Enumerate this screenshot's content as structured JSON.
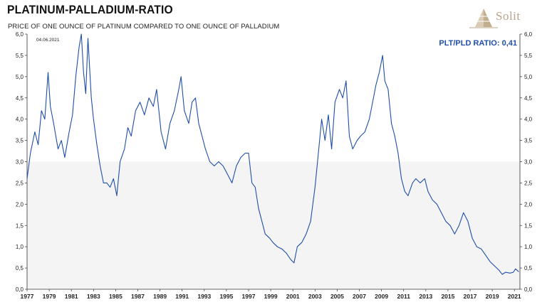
{
  "header": {
    "title": "PLATINUM-PALLADIUM-RATIO",
    "subtitle": "PRICE OF ONE OUNCE OF PLATINUM COMPARED TO ONE OUNCE OF PALLADIUM",
    "logo_text": "Solit"
  },
  "chart_data": {
    "type": "line",
    "date_label": "04.06.2021",
    "annotation": "PLT/PLD RATIO: 0,41",
    "ylim": [
      0,
      6
    ],
    "xlim": [
      1977,
      2021.5
    ],
    "y_ticks": [
      "0,0",
      "0,5",
      "1,0",
      "1,5",
      "2,0",
      "2,5",
      "3,0",
      "3,5",
      "4,0",
      "4,5",
      "5,0",
      "5,5",
      "6,0"
    ],
    "x_ticks": [
      "1977",
      "1979",
      "1981",
      "1983",
      "1985",
      "1987",
      "1989",
      "1991",
      "1993",
      "1995",
      "1997",
      "1999",
      "2001",
      "2003",
      "2005",
      "2007",
      "2009",
      "2011",
      "2013",
      "2015",
      "2017",
      "2019",
      "2021"
    ],
    "reference_band": [
      0,
      3.0
    ],
    "series": [
      {
        "color": "#1f4fa8",
        "points": [
          [
            1977.0,
            2.6
          ],
          [
            1977.3,
            3.2
          ],
          [
            1977.7,
            3.7
          ],
          [
            1978.0,
            3.4
          ],
          [
            1978.3,
            4.2
          ],
          [
            1978.6,
            4.0
          ],
          [
            1978.9,
            5.1
          ],
          [
            1979.1,
            4.3
          ],
          [
            1979.4,
            3.9
          ],
          [
            1979.8,
            3.3
          ],
          [
            1980.1,
            3.5
          ],
          [
            1980.4,
            3.1
          ],
          [
            1980.8,
            3.7
          ],
          [
            1981.1,
            4.1
          ],
          [
            1981.4,
            5.0
          ],
          [
            1981.7,
            5.7
          ],
          [
            1981.9,
            6.0
          ],
          [
            1982.1,
            5.1
          ],
          [
            1982.3,
            4.6
          ],
          [
            1982.5,
            5.9
          ],
          [
            1982.8,
            4.5
          ],
          [
            1983.0,
            4.0
          ],
          [
            1983.3,
            3.4
          ],
          [
            1983.6,
            2.9
          ],
          [
            1983.9,
            2.5
          ],
          [
            1984.2,
            2.5
          ],
          [
            1984.5,
            2.4
          ],
          [
            1984.8,
            2.6
          ],
          [
            1985.1,
            2.2
          ],
          [
            1985.4,
            3.0
          ],
          [
            1985.8,
            3.3
          ],
          [
            1986.1,
            3.8
          ],
          [
            1986.4,
            3.6
          ],
          [
            1986.8,
            4.2
          ],
          [
            1987.2,
            4.4
          ],
          [
            1987.6,
            4.1
          ],
          [
            1988.0,
            4.5
          ],
          [
            1988.4,
            4.3
          ],
          [
            1988.7,
            4.7
          ],
          [
            1989.1,
            3.7
          ],
          [
            1989.5,
            3.3
          ],
          [
            1989.9,
            3.9
          ],
          [
            1990.3,
            4.2
          ],
          [
            1990.7,
            4.7
          ],
          [
            1990.9,
            5.0
          ],
          [
            1991.2,
            4.2
          ],
          [
            1991.6,
            3.9
          ],
          [
            1991.9,
            4.4
          ],
          [
            1992.2,
            4.5
          ],
          [
            1992.5,
            3.9
          ],
          [
            1992.8,
            3.6
          ],
          [
            1993.1,
            3.3
          ],
          [
            1993.5,
            3.0
          ],
          [
            1993.9,
            2.9
          ],
          [
            1994.3,
            3.0
          ],
          [
            1994.7,
            2.9
          ],
          [
            1995.1,
            2.7
          ],
          [
            1995.5,
            2.5
          ],
          [
            1995.9,
            2.9
          ],
          [
            1996.3,
            3.1
          ],
          [
            1996.7,
            3.2
          ],
          [
            1997.0,
            3.2
          ],
          [
            1997.3,
            2.5
          ],
          [
            1997.6,
            2.4
          ],
          [
            1997.9,
            1.9
          ],
          [
            1998.2,
            1.6
          ],
          [
            1998.5,
            1.3
          ],
          [
            1998.9,
            1.2
          ],
          [
            1999.2,
            1.1
          ],
          [
            1999.6,
            1.0
          ],
          [
            2000.0,
            0.95
          ],
          [
            2000.4,
            0.85
          ],
          [
            2000.8,
            0.7
          ],
          [
            2001.1,
            0.62
          ],
          [
            2001.4,
            1.0
          ],
          [
            2001.8,
            1.1
          ],
          [
            2002.2,
            1.3
          ],
          [
            2002.6,
            1.6
          ],
          [
            2003.0,
            2.4
          ],
          [
            2003.3,
            3.2
          ],
          [
            2003.6,
            4.0
          ],
          [
            2003.9,
            3.5
          ],
          [
            2004.2,
            4.1
          ],
          [
            2004.5,
            3.3
          ],
          [
            2004.8,
            4.4
          ],
          [
            2005.2,
            4.7
          ],
          [
            2005.5,
            4.5
          ],
          [
            2005.8,
            4.9
          ],
          [
            2006.1,
            3.6
          ],
          [
            2006.4,
            3.3
          ],
          [
            2006.8,
            3.5
          ],
          [
            2007.1,
            3.6
          ],
          [
            2007.5,
            3.7
          ],
          [
            2007.9,
            4.0
          ],
          [
            2008.2,
            4.4
          ],
          [
            2008.5,
            4.8
          ],
          [
            2008.8,
            5.1
          ],
          [
            2009.1,
            5.5
          ],
          [
            2009.3,
            4.9
          ],
          [
            2009.6,
            4.7
          ],
          [
            2009.9,
            3.9
          ],
          [
            2010.2,
            3.6
          ],
          [
            2010.5,
            3.2
          ],
          [
            2010.8,
            2.6
          ],
          [
            2011.1,
            2.3
          ],
          [
            2011.4,
            2.2
          ],
          [
            2011.8,
            2.5
          ],
          [
            2012.1,
            2.6
          ],
          [
            2012.5,
            2.5
          ],
          [
            2012.9,
            2.6
          ],
          [
            2013.2,
            2.3
          ],
          [
            2013.6,
            2.1
          ],
          [
            2014.0,
            2.0
          ],
          [
            2014.4,
            1.8
          ],
          [
            2014.8,
            1.6
          ],
          [
            2015.2,
            1.5
          ],
          [
            2015.6,
            1.3
          ],
          [
            2016.0,
            1.5
          ],
          [
            2016.4,
            1.8
          ],
          [
            2016.8,
            1.6
          ],
          [
            2017.2,
            1.2
          ],
          [
            2017.6,
            1.0
          ],
          [
            2018.0,
            0.95
          ],
          [
            2018.4,
            0.8
          ],
          [
            2018.8,
            0.65
          ],
          [
            2019.2,
            0.55
          ],
          [
            2019.6,
            0.45
          ],
          [
            2019.9,
            0.35
          ],
          [
            2020.2,
            0.4
          ],
          [
            2020.6,
            0.38
          ],
          [
            2020.9,
            0.4
          ],
          [
            2021.1,
            0.48
          ],
          [
            2021.4,
            0.41
          ]
        ]
      }
    ]
  }
}
